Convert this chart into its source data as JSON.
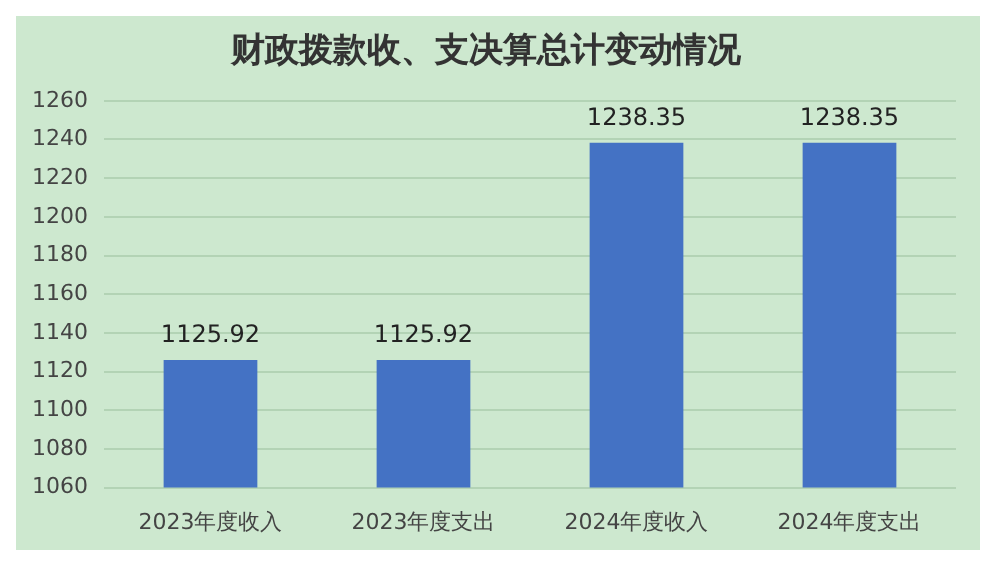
{
  "chart_data": {
    "type": "bar",
    "title": "财政拨款收、支决算总计变动情况",
    "categories": [
      "2023年度收入",
      "2023年度支出",
      "2024年度收入",
      "2024年度支出"
    ],
    "values": [
      1125.92,
      1125.92,
      1238.35,
      1238.35
    ],
    "color": "#4472c4",
    "ylim": [
      1060,
      1260
    ],
    "yticks": [
      1060,
      1080,
      1100,
      1120,
      1140,
      1160,
      1180,
      1200,
      1220,
      1240,
      1260
    ],
    "grid": "y",
    "data_labels": true
  }
}
